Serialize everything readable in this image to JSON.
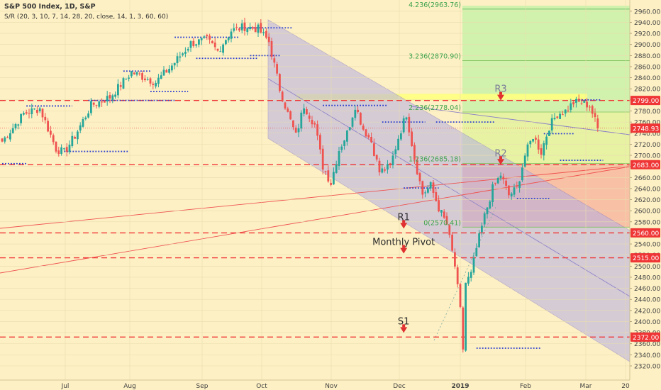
{
  "header": {
    "title": "S&P 500 Index, 1D, S&P",
    "indicator": "S/R (20, 3, 10, 7, 14, 28, 20, close, 14, 1, 3, 60, 60)"
  },
  "colors": {
    "background": "#fdf0c4",
    "bull": "#26a69a",
    "bear": "#ef5350",
    "level_line": "#ef3535",
    "support_dots": "#2c3fd0",
    "channel_fill": "#b4aee3",
    "fib_upper_fill": "#c9f2a8",
    "fib_mid_fill": "#ffff80",
    "fib_lower_fill": "#f7b9a0",
    "pivot_label": "#2b2b2b",
    "price_tag": "#ef3535"
  },
  "chart_data": {
    "type": "candlestick",
    "title": "S&P 500 Index, 1D, S&P",
    "y_axis": {
      "range": [
        2320,
        2970
      ],
      "ticks": [
        2320,
        2340,
        2360,
        2380,
        2400,
        2420,
        2440,
        2460,
        2480,
        2500,
        2520,
        2540,
        2560,
        2580,
        2600,
        2620,
        2640,
        2660,
        2680,
        2700,
        2720,
        2740,
        2760,
        2780,
        2800,
        2820,
        2840,
        2860,
        2880,
        2900,
        2920,
        2940,
        2960
      ]
    },
    "x_axis": {
      "ticks": [
        "Jul",
        "Aug",
        "Sep",
        "Oct",
        "Nov",
        "Dec",
        "2019",
        "Feb",
        "Mar",
        "20"
      ]
    },
    "price_tags": [
      "2799.00",
      "2748.93",
      "2683.00",
      "2560.00",
      "2515.00",
      "2372.00"
    ],
    "horizontal_levels": [
      {
        "value": 2799,
        "label": "R3",
        "label_day": 185
      },
      {
        "value": 2683,
        "label": "R2",
        "label_day": 185
      },
      {
        "value": 2560,
        "label": "R1",
        "label_day": 149
      },
      {
        "value": 2515,
        "label": "Monthly Pivot",
        "label_day": 149
      },
      {
        "value": 2372,
        "label": "S1",
        "label_day": 149
      }
    ],
    "fib_levels": [
      {
        "text": "4.236(2963.76)",
        "value": 2963.76
      },
      {
        "text": "3.236(2870.90)",
        "value": 2870.9
      },
      {
        "text": "2.236(2778.04)",
        "value": 2778.04
      },
      {
        "text": "1.236(2685.18)",
        "value": 2685.18
      },
      {
        "text": "0(2570.41)",
        "value": 2570.41
      }
    ],
    "last_close": 2748.93,
    "anchors": [
      {
        "day": 0,
        "price": 2725
      },
      {
        "day": 8,
        "price": 2775
      },
      {
        "day": 14,
        "price": 2785
      },
      {
        "day": 20,
        "price": 2712
      },
      {
        "day": 23,
        "price": 2705
      },
      {
        "day": 27,
        "price": 2735
      },
      {
        "day": 33,
        "price": 2790
      },
      {
        "day": 40,
        "price": 2805
      },
      {
        "day": 48,
        "price": 2850
      },
      {
        "day": 57,
        "price": 2832
      },
      {
        "day": 63,
        "price": 2862
      },
      {
        "day": 70,
        "price": 2902
      },
      {
        "day": 76,
        "price": 2908
      },
      {
        "day": 80,
        "price": 2888
      },
      {
        "day": 85,
        "price": 2925
      },
      {
        "day": 90,
        "price": 2932
      },
      {
        "day": 95,
        "price": 2928
      },
      {
        "day": 99,
        "price": 2905
      },
      {
        "day": 103,
        "price": 2820
      },
      {
        "day": 106,
        "price": 2775
      },
      {
        "day": 109,
        "price": 2735
      },
      {
        "day": 112,
        "price": 2790
      },
      {
        "day": 116,
        "price": 2755
      },
      {
        "day": 119,
        "price": 2680
      },
      {
        "day": 122,
        "price": 2650
      },
      {
        "day": 125,
        "price": 2710
      },
      {
        "day": 128,
        "price": 2740
      },
      {
        "day": 131,
        "price": 2790
      },
      {
        "day": 134,
        "price": 2748
      },
      {
        "day": 137,
        "price": 2725
      },
      {
        "day": 140,
        "price": 2670
      },
      {
        "day": 144,
        "price": 2680
      },
      {
        "day": 147,
        "price": 2732
      },
      {
        "day": 150,
        "price": 2775
      },
      {
        "day": 153,
        "price": 2695
      },
      {
        "day": 156,
        "price": 2630
      },
      {
        "day": 159,
        "price": 2645
      },
      {
        "day": 162,
        "price": 2605
      },
      {
        "day": 165,
        "price": 2575
      },
      {
        "day": 168,
        "price": 2500
      },
      {
        "day": 170,
        "price": 2420
      },
      {
        "day": 171,
        "price": 2351
      },
      {
        "day": 172,
        "price": 2470
      },
      {
        "day": 174,
        "price": 2485
      },
      {
        "day": 176,
        "price": 2532
      },
      {
        "day": 179,
        "price": 2590
      },
      {
        "day": 182,
        "price": 2640
      },
      {
        "day": 185,
        "price": 2665
      },
      {
        "day": 188,
        "price": 2628
      },
      {
        "day": 191,
        "price": 2640
      },
      {
        "day": 194,
        "price": 2700
      },
      {
        "day": 197,
        "price": 2735
      },
      {
        "day": 200,
        "price": 2706
      },
      {
        "day": 203,
        "price": 2752
      },
      {
        "day": 206,
        "price": 2775
      },
      {
        "day": 209,
        "price": 2780
      },
      {
        "day": 212,
        "price": 2795
      },
      {
        "day": 215,
        "price": 2795
      },
      {
        "day": 218,
        "price": 2790
      },
      {
        "day": 221,
        "price": 2749
      }
    ],
    "support_resistance_segments": [
      {
        "start": 0,
        "end": 9,
        "value": 2685
      },
      {
        "start": 9,
        "end": 26,
        "value": 2789
      },
      {
        "start": 23,
        "end": 47,
        "value": 2707
      },
      {
        "start": 32,
        "end": 64,
        "value": 2799
      },
      {
        "start": 45,
        "end": 55,
        "value": 2852
      },
      {
        "start": 55,
        "end": 69,
        "value": 2815
      },
      {
        "start": 64,
        "end": 88,
        "value": 2913
      },
      {
        "start": 72,
        "end": 95,
        "value": 2875
      },
      {
        "start": 88,
        "end": 108,
        "value": 2930
      },
      {
        "start": 92,
        "end": 103,
        "value": 2880
      },
      {
        "start": 119,
        "end": 143,
        "value": 2790
      },
      {
        "start": 141,
        "end": 157,
        "value": 2760
      },
      {
        "start": 149,
        "end": 162,
        "value": 2641
      },
      {
        "start": 161,
        "end": 183,
        "value": 2760
      },
      {
        "start": 176,
        "end": 200,
        "value": 2352
      },
      {
        "start": 191,
        "end": 203,
        "value": 2622
      },
      {
        "start": 201,
        "end": 212,
        "value": 2739
      },
      {
        "start": 207,
        "end": 223,
        "value": 2691
      },
      {
        "start": 213,
        "end": 222,
        "value": 2800
      }
    ]
  }
}
